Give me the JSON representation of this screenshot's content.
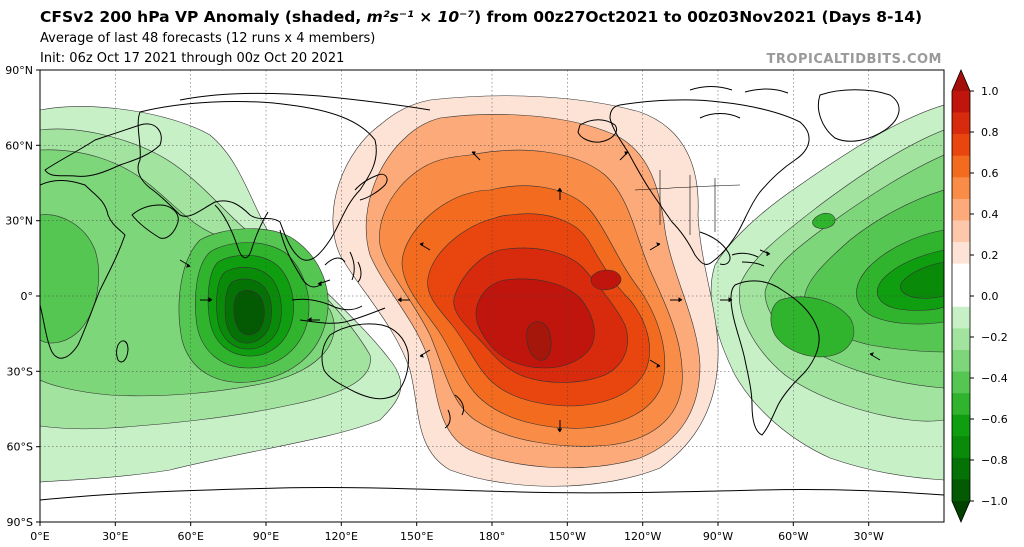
{
  "header": {
    "title_prefix": "CFSv2 200 hPa VP Anomaly (shaded, ",
    "title_units": "m²s⁻¹ × 10⁻⁷",
    "title_suffix": ") from 00z27Oct2021 to 00z03Nov2021 (Days 8-14)",
    "subtitle": "Average of last 48 forecasts (12 runs x 4 members)",
    "init": "Init: 06z Oct 17 2021 through 00z Oct 20 2021",
    "watermark": "TROPICALTIDBITS.COM"
  },
  "map": {
    "projection": "equirectangular",
    "center_longitude": 180,
    "grid": true,
    "lat_ticks": [
      "90°N",
      "60°N",
      "30°N",
      "0°",
      "30°S",
      "60°S",
      "90°S"
    ],
    "lon_ticks": [
      "0°E",
      "30°E",
      "60°E",
      "90°E",
      "120°E",
      "150°E",
      "180°",
      "150°W",
      "120°W",
      "90°W",
      "60°W",
      "30°W"
    ]
  },
  "colorbar": {
    "ticks": [
      "1.0",
      "0.8",
      "0.6",
      "0.4",
      "0.2",
      "0.0",
      "−0.2",
      "−0.4",
      "−0.6",
      "−0.8",
      "−1.0"
    ],
    "colors_high_to_low": [
      "#a50f0a",
      "#c0150c",
      "#d82a0c",
      "#e8460e",
      "#f26b1f",
      "#f98c46",
      "#fcaa79",
      "#fdc7ab",
      "#fde3d6",
      "#ffffff",
      "#ffffff",
      "#c7f0c7",
      "#a3e3a0",
      "#7ed67a",
      "#56c653",
      "#30b42d",
      "#0f9e0f",
      "#098a09",
      "#057205",
      "#035a03",
      "#014201"
    ]
  },
  "chart_data": {
    "type": "heatmap",
    "variable": "200 hPa velocity potential anomaly",
    "units": "m²s⁻¹ × 10⁻⁷",
    "value_range": [
      -1.0,
      1.0
    ],
    "centers": [
      {
        "region": "Central Pacific (~10°S, 140°W)",
        "value": 0.95,
        "sign": "positive"
      },
      {
        "region": "North Pacific / Alaska (~55°N, 160°W)",
        "value": 0.55,
        "sign": "positive"
      },
      {
        "region": "Eastern Indian Ocean (~5°S, 85°E)",
        "value": -0.95,
        "sign": "negative"
      },
      {
        "region": "Tropical Atlantic (~5°N, 25°W)",
        "value": -0.6,
        "sign": "negative"
      },
      {
        "region": "South America (~10°S, 50°W)",
        "value": -0.55,
        "sign": "negative"
      },
      {
        "region": "Africa (~0°, 20°E)",
        "value": -0.4,
        "sign": "negative"
      }
    ]
  }
}
